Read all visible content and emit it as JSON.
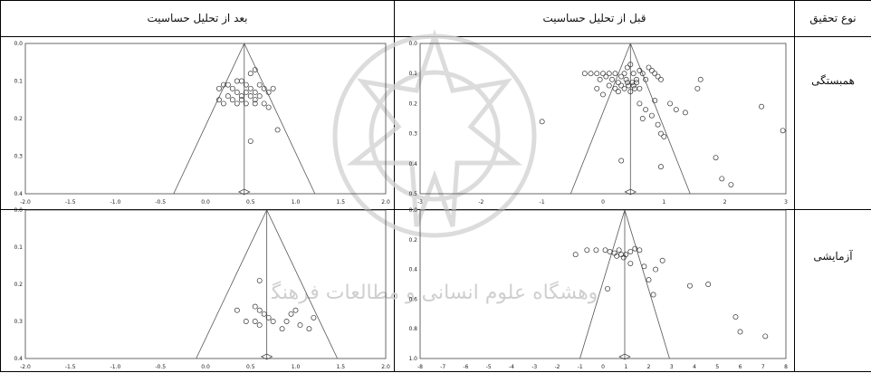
{
  "table": {
    "col_type": "نوع تحقیق",
    "col_before": "قبل از تحلیل حساسیت",
    "col_after": "بعد از تحلیل حساسیت",
    "row_correlational": "همبستگی",
    "row_experimental": "آزمایشی"
  },
  "watermark": {
    "text": "پژوهشگاه علوم انسانی و مطالعات فرهنگی"
  },
  "chart_data": [
    {
      "id": "corr_before",
      "type": "scatter",
      "title": "",
      "xlabel": "",
      "ylabel": "",
      "xlim": [
        -3,
        3
      ],
      "ylim": [
        0.5,
        0.0
      ],
      "xticks": [
        "-3",
        "-2",
        "-1",
        "0",
        "1",
        "2",
        "3"
      ],
      "yticks": [
        "0.0",
        "0.1",
        "0.2",
        "0.3",
        "0.4",
        "0.5"
      ],
      "center": 0.45,
      "points": [
        [
          -0.3,
          0.1
        ],
        [
          -0.2,
          0.1
        ],
        [
          -0.1,
          0.1
        ],
        [
          -0.05,
          0.12
        ],
        [
          0.0,
          0.1
        ],
        [
          0.05,
          0.11
        ],
        [
          0.1,
          0.1
        ],
        [
          0.15,
          0.12
        ],
        [
          0.2,
          0.1
        ],
        [
          0.25,
          0.13
        ],
        [
          0.3,
          0.11
        ],
        [
          0.35,
          0.1
        ],
        [
          0.4,
          0.08
        ],
        [
          0.45,
          0.07
        ],
        [
          0.5,
          0.1
        ],
        [
          0.55,
          0.12
        ],
        [
          0.6,
          0.09
        ],
        [
          0.65,
          0.1
        ],
        [
          0.7,
          0.12
        ],
        [
          0.75,
          0.08
        ],
        [
          0.8,
          0.09
        ],
        [
          0.85,
          0.1
        ],
        [
          0.9,
          0.11
        ],
        [
          0.95,
          0.12
        ],
        [
          0.1,
          0.14
        ],
        [
          0.2,
          0.15
        ],
        [
          0.3,
          0.14
        ],
        [
          0.4,
          0.13
        ],
        [
          0.5,
          0.14
        ],
        [
          0.6,
          0.15
        ],
        [
          0.45,
          0.16
        ],
        [
          0.35,
          0.15
        ],
        [
          0.25,
          0.16
        ],
        [
          0.55,
          0.13
        ],
        [
          0.42,
          0.14
        ],
        [
          0.48,
          0.13
        ],
        [
          0.52,
          0.15
        ],
        [
          0.38,
          0.12
        ],
        [
          0.6,
          0.2
        ],
        [
          0.7,
          0.22
        ],
        [
          0.8,
          0.24
        ],
        [
          0.85,
          0.19
        ],
        [
          0.65,
          0.25
        ],
        [
          0.9,
          0.27
        ],
        [
          0.95,
          0.3
        ],
        [
          1.0,
          0.31
        ],
        [
          1.1,
          0.2
        ],
        [
          1.2,
          0.22
        ],
        [
          1.35,
          0.23
        ],
        [
          1.55,
          0.15
        ],
        [
          1.6,
          0.12
        ],
        [
          2.6,
          0.21
        ],
        [
          2.95,
          0.29
        ],
        [
          -1.0,
          0.26
        ],
        [
          0.3,
          0.39
        ],
        [
          0.95,
          0.41
        ],
        [
          1.85,
          0.38
        ],
        [
          1.95,
          0.45
        ],
        [
          2.1,
          0.47
        ],
        [
          0.0,
          0.17
        ],
        [
          -0.1,
          0.15
        ]
      ]
    },
    {
      "id": "corr_after",
      "type": "scatter",
      "title": "",
      "xlabel": "",
      "ylabel": "",
      "xlim": [
        -2,
        2
      ],
      "ylim": [
        0.4,
        0.0
      ],
      "xticks": [
        "-2.0",
        "-1.5",
        "-1.0",
        "-0.5",
        "0.0",
        "0.5",
        "1.0",
        "1.5",
        "2.0"
      ],
      "yticks": [
        "0.0",
        "0.1",
        "0.2",
        "0.3",
        "0.4"
      ],
      "center": 0.43,
      "points": [
        [
          0.15,
          0.12
        ],
        [
          0.2,
          0.11
        ],
        [
          0.25,
          0.11
        ],
        [
          0.3,
          0.12
        ],
        [
          0.35,
          0.1
        ],
        [
          0.4,
          0.1
        ],
        [
          0.45,
          0.11
        ],
        [
          0.5,
          0.12
        ],
        [
          0.55,
          0.13
        ],
        [
          0.6,
          0.11
        ],
        [
          0.65,
          0.12
        ],
        [
          0.7,
          0.13
        ],
        [
          0.75,
          0.12
        ],
        [
          0.35,
          0.13
        ],
        [
          0.4,
          0.14
        ],
        [
          0.45,
          0.13
        ],
        [
          0.5,
          0.14
        ],
        [
          0.55,
          0.15
        ],
        [
          0.6,
          0.14
        ],
        [
          0.25,
          0.14
        ],
        [
          0.3,
          0.15
        ],
        [
          0.2,
          0.16
        ],
        [
          0.35,
          0.16
        ],
        [
          0.45,
          0.16
        ],
        [
          0.55,
          0.16
        ],
        [
          0.65,
          0.16
        ],
        [
          0.5,
          0.08
        ],
        [
          0.55,
          0.07
        ],
        [
          0.7,
          0.17
        ],
        [
          0.8,
          0.23
        ],
        [
          0.5,
          0.26
        ],
        [
          0.4,
          0.15
        ],
        [
          0.15,
          0.15
        ]
      ]
    },
    {
      "id": "exp_before",
      "type": "scatter",
      "title": "",
      "xlabel": "",
      "ylabel": "",
      "xlim": [
        -8,
        8
      ],
      "ylim": [
        1.0,
        0.0
      ],
      "xticks": [
        "-8",
        "-7",
        "-6",
        "-5",
        "-4",
        "-3",
        "-2",
        "-1",
        "0",
        "1",
        "2",
        "3",
        "4",
        "5",
        "6",
        "7",
        "8"
      ],
      "yticks": [
        "0.0",
        "0.2",
        "0.4",
        "0.6",
        "0.8",
        "1.0"
      ],
      "center": 0.95,
      "points": [
        [
          -1.2,
          0.3
        ],
        [
          -0.7,
          0.27
        ],
        [
          -0.3,
          0.27
        ],
        [
          0.1,
          0.27
        ],
        [
          0.3,
          0.28
        ],
        [
          0.5,
          0.29
        ],
        [
          0.7,
          0.27
        ],
        [
          0.8,
          0.3
        ],
        [
          1.0,
          0.3
        ],
        [
          1.2,
          0.28
        ],
        [
          1.4,
          0.26
        ],
        [
          0.6,
          0.31
        ],
        [
          0.9,
          0.32
        ],
        [
          1.6,
          0.27
        ],
        [
          1.8,
          0.38
        ],
        [
          2.3,
          0.4
        ],
        [
          2.6,
          0.34
        ],
        [
          2.0,
          0.47
        ],
        [
          3.8,
          0.51
        ],
        [
          2.2,
          0.57
        ],
        [
          0.2,
          0.53
        ],
        [
          5.8,
          0.72
        ],
        [
          6.0,
          0.82
        ],
        [
          7.1,
          0.85
        ],
        [
          4.6,
          0.5
        ],
        [
          1.2,
          0.36
        ]
      ]
    },
    {
      "id": "exp_after",
      "type": "scatter",
      "title": "",
      "xlabel": "",
      "ylabel": "",
      "xlim": [
        -2,
        2
      ],
      "ylim": [
        0.4,
        0.0
      ],
      "xticks": [
        "-2.0",
        "-1.5",
        "-1.0",
        "-0.5",
        "0.0",
        "0.5",
        "1.0",
        "1.5",
        "2.0"
      ],
      "yticks": [
        "0.0",
        "0.1",
        "0.2",
        "0.3",
        "0.4"
      ],
      "center": 0.68,
      "points": [
        [
          0.35,
          0.27
        ],
        [
          0.55,
          0.26
        ],
        [
          0.6,
          0.27
        ],
        [
          0.65,
          0.28
        ],
        [
          0.7,
          0.29
        ],
        [
          0.75,
          0.3
        ],
        [
          0.55,
          0.3
        ],
        [
          0.6,
          0.31
        ],
        [
          0.45,
          0.3
        ],
        [
          0.95,
          0.28
        ],
        [
          1.0,
          0.27
        ],
        [
          1.05,
          0.31
        ],
        [
          0.85,
          0.32
        ],
        [
          1.2,
          0.29
        ],
        [
          1.15,
          0.32
        ],
        [
          0.6,
          0.19
        ],
        [
          0.9,
          0.3
        ]
      ]
    }
  ]
}
